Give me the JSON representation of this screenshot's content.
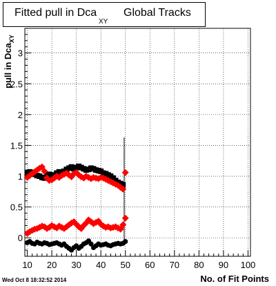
{
  "chart_data": {
    "type": "scatter",
    "title_part1": "Fitted pull in Dca",
    "title_sub": "XY",
    "title_part2": "Global Tracks",
    "ylabel": "pull in Dca",
    "ylabel_sub": "XY",
    "xlabel": "No. of Fit Points",
    "xlim": [
      9,
      101
    ],
    "ylim": [
      -0.3,
      3.4
    ],
    "xticks": [
      10,
      20,
      30,
      40,
      50,
      60,
      70,
      80,
      90,
      100
    ],
    "yticks": [
      0,
      0.5,
      1,
      1.5,
      2,
      2.5,
      3
    ],
    "ytick_labels": [
      "0",
      "0.5",
      "1",
      "1.5",
      "2",
      "2.5",
      "3"
    ],
    "grid": true,
    "series": [
      {
        "color": "#000000",
        "marker": "square",
        "x": [
          10,
          11,
          12,
          13,
          14,
          15,
          16,
          17,
          18,
          19,
          20,
          21,
          22,
          23,
          24,
          25,
          26,
          27,
          28,
          29,
          30,
          31,
          32,
          33,
          34,
          35,
          36,
          37,
          38,
          39,
          40,
          41,
          42,
          43,
          44,
          45,
          46,
          47,
          48,
          49
        ],
        "y": [
          1.05,
          1.07,
          1.06,
          1.03,
          1.01,
          1.0,
          0.98,
          0.97,
          1.01,
          1.03,
          1.0,
          1.02,
          1.05,
          1.07,
          1.06,
          1.08,
          1.11,
          1.13,
          1.15,
          1.12,
          1.14,
          1.16,
          1.14,
          1.12,
          1.1,
          1.11,
          1.13,
          1.12,
          1.1,
          1.09,
          1.08,
          1.05,
          1.04,
          1.02,
          1.0,
          0.97,
          0.93,
          0.9,
          0.88,
          0.86
        ]
      },
      {
        "color": "#ff0000",
        "marker": "diamond",
        "x": [
          10,
          11,
          12,
          13,
          14,
          15,
          16,
          17,
          18,
          19,
          20,
          21,
          22,
          23,
          24,
          25,
          26,
          27,
          28,
          29,
          30,
          31,
          32,
          33,
          34,
          35,
          36,
          37,
          38,
          39,
          40,
          41,
          42,
          43,
          44,
          45,
          46,
          47,
          48,
          49,
          50
        ],
        "y": [
          0.98,
          1.01,
          1.04,
          1.07,
          1.1,
          1.13,
          1.15,
          1.08,
          0.97,
          0.93,
          0.94,
          0.97,
          1.0,
          0.98,
          1.01,
          1.03,
          1.05,
          1.02,
          0.99,
          1.04,
          1.06,
          1.02,
          0.99,
          0.97,
          1.0,
          0.98,
          0.96,
          0.98,
          0.97,
          0.96,
          0.98,
          0.97,
          0.95,
          0.93,
          0.91,
          0.89,
          0.87,
          0.85,
          0.82,
          0.79,
          1.06
        ]
      },
      {
        "color": "#ff0000",
        "marker": "diamond",
        "x": [
          10,
          11,
          12,
          13,
          14,
          15,
          16,
          17,
          18,
          19,
          20,
          21,
          22,
          23,
          24,
          25,
          26,
          27,
          28,
          29,
          30,
          31,
          32,
          33,
          34,
          35,
          36,
          37,
          38,
          39,
          40,
          41,
          42,
          43,
          44,
          45,
          46,
          47,
          48,
          49,
          50
        ],
        "y": [
          0.07,
          0.1,
          0.12,
          0.14,
          0.15,
          0.17,
          0.19,
          0.18,
          0.15,
          0.17,
          0.2,
          0.18,
          0.16,
          0.19,
          0.17,
          0.15,
          0.18,
          0.21,
          0.24,
          0.26,
          0.22,
          0.18,
          0.15,
          0.2,
          0.24,
          0.29,
          0.26,
          0.23,
          0.25,
          0.27,
          0.22,
          0.19,
          0.17,
          0.18,
          0.16,
          0.17,
          0.18,
          0.16,
          0.14,
          0.21,
          0.32
        ]
      },
      {
        "color": "#000000",
        "marker": "circle",
        "x": [
          10,
          11,
          12,
          13,
          14,
          15,
          16,
          17,
          18,
          19,
          20,
          21,
          22,
          23,
          24,
          25,
          26,
          27,
          28,
          29,
          30,
          31,
          32,
          33,
          34,
          35,
          36,
          37,
          38,
          39,
          40,
          41,
          42,
          43,
          44,
          45,
          46,
          47,
          48,
          49,
          50
        ],
        "y": [
          -0.08,
          -0.06,
          -0.09,
          -0.1,
          -0.07,
          -0.09,
          -0.1,
          -0.08,
          -0.09,
          -0.11,
          -0.1,
          -0.09,
          -0.08,
          -0.1,
          -0.12,
          -0.1,
          -0.14,
          -0.17,
          -0.2,
          -0.16,
          -0.13,
          -0.17,
          -0.14,
          -0.1,
          -0.08,
          -0.05,
          -0.1,
          -0.16,
          -0.13,
          -0.1,
          -0.12,
          -0.11,
          -0.1,
          -0.12,
          -0.13,
          -0.11,
          -0.1,
          -0.09,
          -0.1,
          -0.09,
          -0.06
        ]
      }
    ],
    "error_bar": {
      "x": 49.5,
      "ylow": -0.1,
      "yhigh": 1.63
    }
  },
  "timestamp": "Wed Oct  8 18:32:52 2014"
}
